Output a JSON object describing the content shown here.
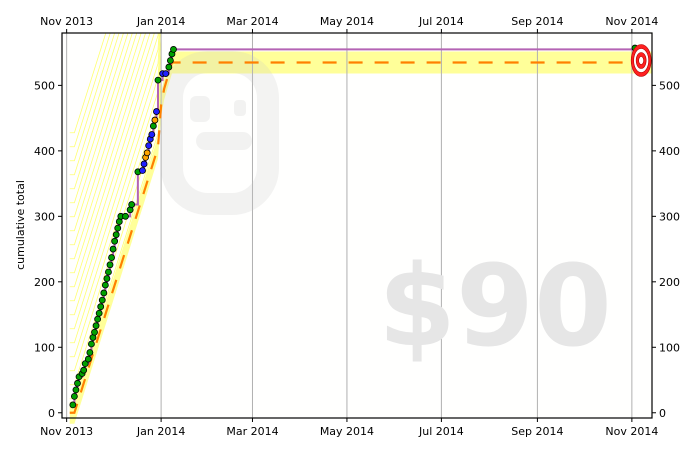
{
  "chart_data": {
    "type": "line",
    "title": "",
    "ylabel": "cumulative total",
    "xlabel": "",
    "watermark": "$90",
    "ylim": [
      -8,
      580
    ],
    "xlim": [
      "2013-10-29",
      "2014-11-14"
    ],
    "x_ticks": [
      {
        "date": "2013-11-01",
        "label": "Nov 2013"
      },
      {
        "date": "2014-01-01",
        "label": "Jan 2014"
      },
      {
        "date": "2014-03-01",
        "label": "Mar 2014"
      },
      {
        "date": "2014-05-01",
        "label": "May 2014"
      },
      {
        "date": "2014-07-01",
        "label": "Jul 2014"
      },
      {
        "date": "2014-09-01",
        "label": "Sep 2014"
      },
      {
        "date": "2014-11-01",
        "label": "Nov 2014"
      }
    ],
    "y_ticks": [
      0,
      100,
      200,
      300,
      400,
      500
    ],
    "grid": true,
    "colors": {
      "progress": "#b464b4",
      "road": "#ff8000",
      "yellow_brick_road": "#ffff99",
      "dot_good": "#00a000",
      "dot_warn": "#ffa500",
      "dot_bad": "#2020ff",
      "target": "#ff2020",
      "grid": "#b0b0b0",
      "background": "#fffffe"
    },
    "target": {
      "date": "2014-11-07",
      "value": 538
    },
    "series": [
      {
        "type": "datapoints",
        "points": [
          {
            "x": "2013-11-05",
            "y": 12,
            "c": "good"
          },
          {
            "x": "2013-11-06",
            "y": 25,
            "c": "good"
          },
          {
            "x": "2013-11-07",
            "y": 35,
            "c": "good"
          },
          {
            "x": "2013-11-08",
            "y": 45,
            "c": "good"
          },
          {
            "x": "2013-11-09",
            "y": 55,
            "c": "good"
          },
          {
            "x": "2013-11-11",
            "y": 60,
            "c": "good"
          },
          {
            "x": "2013-11-12",
            "y": 65,
            "c": "good"
          },
          {
            "x": "2013-11-13",
            "y": 75,
            "c": "good"
          },
          {
            "x": "2013-11-15",
            "y": 82,
            "c": "good"
          },
          {
            "x": "2013-11-16",
            "y": 92,
            "c": "good"
          },
          {
            "x": "2013-11-17",
            "y": 105,
            "c": "good"
          },
          {
            "x": "2013-11-18",
            "y": 115,
            "c": "good"
          },
          {
            "x": "2013-11-19",
            "y": 123,
            "c": "good"
          },
          {
            "x": "2013-11-20",
            "y": 133,
            "c": "good"
          },
          {
            "x": "2013-11-21",
            "y": 143,
            "c": "good"
          },
          {
            "x": "2013-11-22",
            "y": 152,
            "c": "good"
          },
          {
            "x": "2013-11-23",
            "y": 162,
            "c": "good"
          },
          {
            "x": "2013-11-24",
            "y": 172,
            "c": "good"
          },
          {
            "x": "2013-11-25",
            "y": 183,
            "c": "good"
          },
          {
            "x": "2013-11-26",
            "y": 195,
            "c": "good"
          },
          {
            "x": "2013-11-27",
            "y": 205,
            "c": "good"
          },
          {
            "x": "2013-11-28",
            "y": 215,
            "c": "good"
          },
          {
            "x": "2013-11-29",
            "y": 226,
            "c": "good"
          },
          {
            "x": "2013-11-30",
            "y": 237,
            "c": "good"
          },
          {
            "x": "2013-12-01",
            "y": 250,
            "c": "good"
          },
          {
            "x": "2013-12-02",
            "y": 262,
            "c": "good"
          },
          {
            "x": "2013-12-03",
            "y": 272,
            "c": "good"
          },
          {
            "x": "2013-12-04",
            "y": 282,
            "c": "good"
          },
          {
            "x": "2013-12-05",
            "y": 292,
            "c": "good"
          },
          {
            "x": "2013-12-06",
            "y": 300,
            "c": "good"
          },
          {
            "x": "2013-12-09",
            "y": 300,
            "c": "good"
          },
          {
            "x": "2013-12-12",
            "y": 310,
            "c": "good"
          },
          {
            "x": "2013-12-13",
            "y": 318,
            "c": "good"
          },
          {
            "x": "2013-12-17",
            "y": 368,
            "c": "good"
          },
          {
            "x": "2013-12-20",
            "y": 370,
            "c": "bad"
          },
          {
            "x": "2013-12-21",
            "y": 380,
            "c": "bad"
          },
          {
            "x": "2013-12-22",
            "y": 390,
            "c": "warn"
          },
          {
            "x": "2013-12-23",
            "y": 397,
            "c": "warn"
          },
          {
            "x": "2013-12-24",
            "y": 408,
            "c": "bad"
          },
          {
            "x": "2013-12-25",
            "y": 418,
            "c": "bad"
          },
          {
            "x": "2013-12-26",
            "y": 425,
            "c": "bad"
          },
          {
            "x": "2013-12-27",
            "y": 438,
            "c": "good"
          },
          {
            "x": "2013-12-28",
            "y": 447,
            "c": "warn"
          },
          {
            "x": "2013-12-29",
            "y": 460,
            "c": "bad"
          },
          {
            "x": "2013-12-30",
            "y": 508,
            "c": "good"
          },
          {
            "x": "2014-01-02",
            "y": 518,
            "c": "bad"
          },
          {
            "x": "2014-01-04",
            "y": 518,
            "c": "bad"
          },
          {
            "x": "2014-01-06",
            "y": 528,
            "c": "good"
          },
          {
            "x": "2014-01-07",
            "y": 538,
            "c": "good"
          },
          {
            "x": "2014-01-08",
            "y": 548,
            "c": "good"
          },
          {
            "x": "2014-01-09",
            "y": 555,
            "c": "good"
          },
          {
            "x": "2014-11-03",
            "y": 557,
            "c": "good"
          }
        ]
      },
      {
        "type": "road",
        "points": [
          {
            "x": "2013-11-03",
            "y": 0
          },
          {
            "x": "2013-11-06",
            "y": 0
          },
          {
            "x": "2013-12-30",
            "y": 405
          },
          {
            "x": "2014-01-01",
            "y": 470
          },
          {
            "x": "2014-01-03",
            "y": 495
          },
          {
            "x": "2014-01-08",
            "y": 535
          },
          {
            "x": "2014-11-14",
            "y": 535
          }
        ]
      }
    ]
  }
}
